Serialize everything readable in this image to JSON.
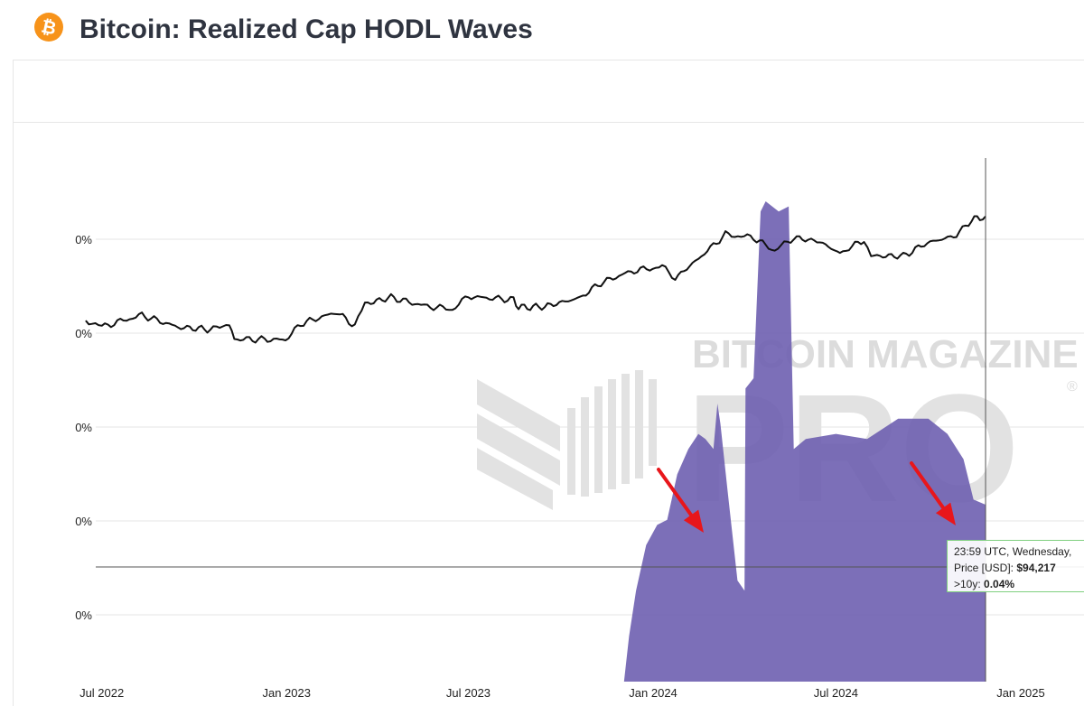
{
  "header": {
    "title": "Bitcoin: Realized Cap HODL Waves",
    "logo_icon": "bitcoin-icon",
    "logo_color": "#f7931a"
  },
  "chart_data": {
    "type": "area",
    "title": "Bitcoin: Realized Cap HODL Waves",
    "x_tick_labels": [
      "Jul 2022",
      "Jan 2023",
      "Jul 2023",
      "Jan 2024",
      "Jul 2024",
      "Jan 2025"
    ],
    "y_tick_labels": [
      "0%",
      "0%",
      "0%",
      "0%",
      "0%"
    ],
    "y_range": [
      0,
      100
    ],
    "series": [
      {
        "name": ">10y",
        "kind": "area",
        "color": "#6e5fb0",
        "unit": "%",
        "points": [
          [
            "2023-12-03",
            0
          ],
          [
            "2023-12-08",
            9
          ],
          [
            "2023-12-15",
            18
          ],
          [
            "2023-12-25",
            27
          ],
          [
            "2024-01-05",
            31
          ],
          [
            "2024-01-15",
            32
          ],
          [
            "2024-01-25",
            41
          ],
          [
            "2024-02-05",
            46
          ],
          [
            "2024-02-15",
            49
          ],
          [
            "2024-02-22",
            48
          ],
          [
            "2024-03-01",
            46
          ],
          [
            "2024-03-05",
            55
          ],
          [
            "2024-03-08",
            51
          ],
          [
            "2024-03-15",
            38
          ],
          [
            "2024-03-25",
            20
          ],
          [
            "2024-04-01",
            18
          ],
          [
            "2024-04-02",
            58
          ],
          [
            "2024-04-10",
            60
          ],
          [
            "2024-04-17",
            93
          ],
          [
            "2024-04-22",
            95
          ],
          [
            "2024-05-05",
            93
          ],
          [
            "2024-05-15",
            94
          ],
          [
            "2024-05-20",
            46
          ],
          [
            "2024-06-01",
            48
          ],
          [
            "2024-07-01",
            49
          ],
          [
            "2024-08-01",
            48
          ],
          [
            "2024-09-01",
            52
          ],
          [
            "2024-10-01",
            52
          ],
          [
            "2024-10-20",
            49
          ],
          [
            "2024-11-05",
            44
          ],
          [
            "2024-11-15",
            36
          ],
          [
            "2024-11-27",
            35
          ],
          [
            "2024-11-27",
            0
          ]
        ]
      },
      {
        "name": "Price [USD]",
        "kind": "line",
        "color": "#111111",
        "scale": "log",
        "points": [
          [
            "2022-06-15",
            22000
          ],
          [
            "2022-07-01",
            20000
          ],
          [
            "2022-08-10",
            23500
          ],
          [
            "2022-09-15",
            19800
          ],
          [
            "2022-10-20",
            19200
          ],
          [
            "2022-11-05",
            21000
          ],
          [
            "2022-11-10",
            16800
          ],
          [
            "2022-12-31",
            16600
          ],
          [
            "2023-01-15",
            20800
          ],
          [
            "2023-02-20",
            24500
          ],
          [
            "2023-03-10",
            20200
          ],
          [
            "2023-03-20",
            27500
          ],
          [
            "2023-04-15",
            30200
          ],
          [
            "2023-05-15",
            27000
          ],
          [
            "2023-06-15",
            25500
          ],
          [
            "2023-07-01",
            30500
          ],
          [
            "2023-08-15",
            29200
          ],
          [
            "2023-08-20",
            26200
          ],
          [
            "2023-09-15",
            26500
          ],
          [
            "2023-10-20",
            30000
          ],
          [
            "2023-11-10",
            37000
          ],
          [
            "2023-12-10",
            43500
          ],
          [
            "2024-01-10",
            46500
          ],
          [
            "2024-01-23",
            39500
          ],
          [
            "2024-02-15",
            52000
          ],
          [
            "2024-03-13",
            73000
          ],
          [
            "2024-04-10",
            70000
          ],
          [
            "2024-05-01",
            58000
          ],
          [
            "2024-05-20",
            70000
          ],
          [
            "2024-06-15",
            66000
          ],
          [
            "2024-07-05",
            56000
          ],
          [
            "2024-07-29",
            68000
          ],
          [
            "2024-08-05",
            54000
          ],
          [
            "2024-09-06",
            54000
          ],
          [
            "2024-09-30",
            65000
          ],
          [
            "2024-10-29",
            72000
          ],
          [
            "2024-11-13",
            90000
          ],
          [
            "2024-11-27",
            94217
          ]
        ]
      }
    ],
    "crosshair_date": "2024-11-27",
    "annotations": [
      "red-arrow",
      "red-arrow"
    ],
    "watermark": {
      "line1": "BITCOIN MAGAZINE",
      "line2": "PRO",
      "mark": "®"
    }
  },
  "tooltip": {
    "line1": "23:59 UTC, Wednesday,",
    "price_label": "Price [USD]:",
    "price_value": "$94,217",
    "series_label": ">10y:",
    "series_value": "0.04%"
  },
  "colors": {
    "area_fill": "#6e5fb0",
    "price_line": "#111111",
    "arrow": "#e8161b",
    "grid": "#e6e6e6",
    "text": "#2f3440"
  }
}
